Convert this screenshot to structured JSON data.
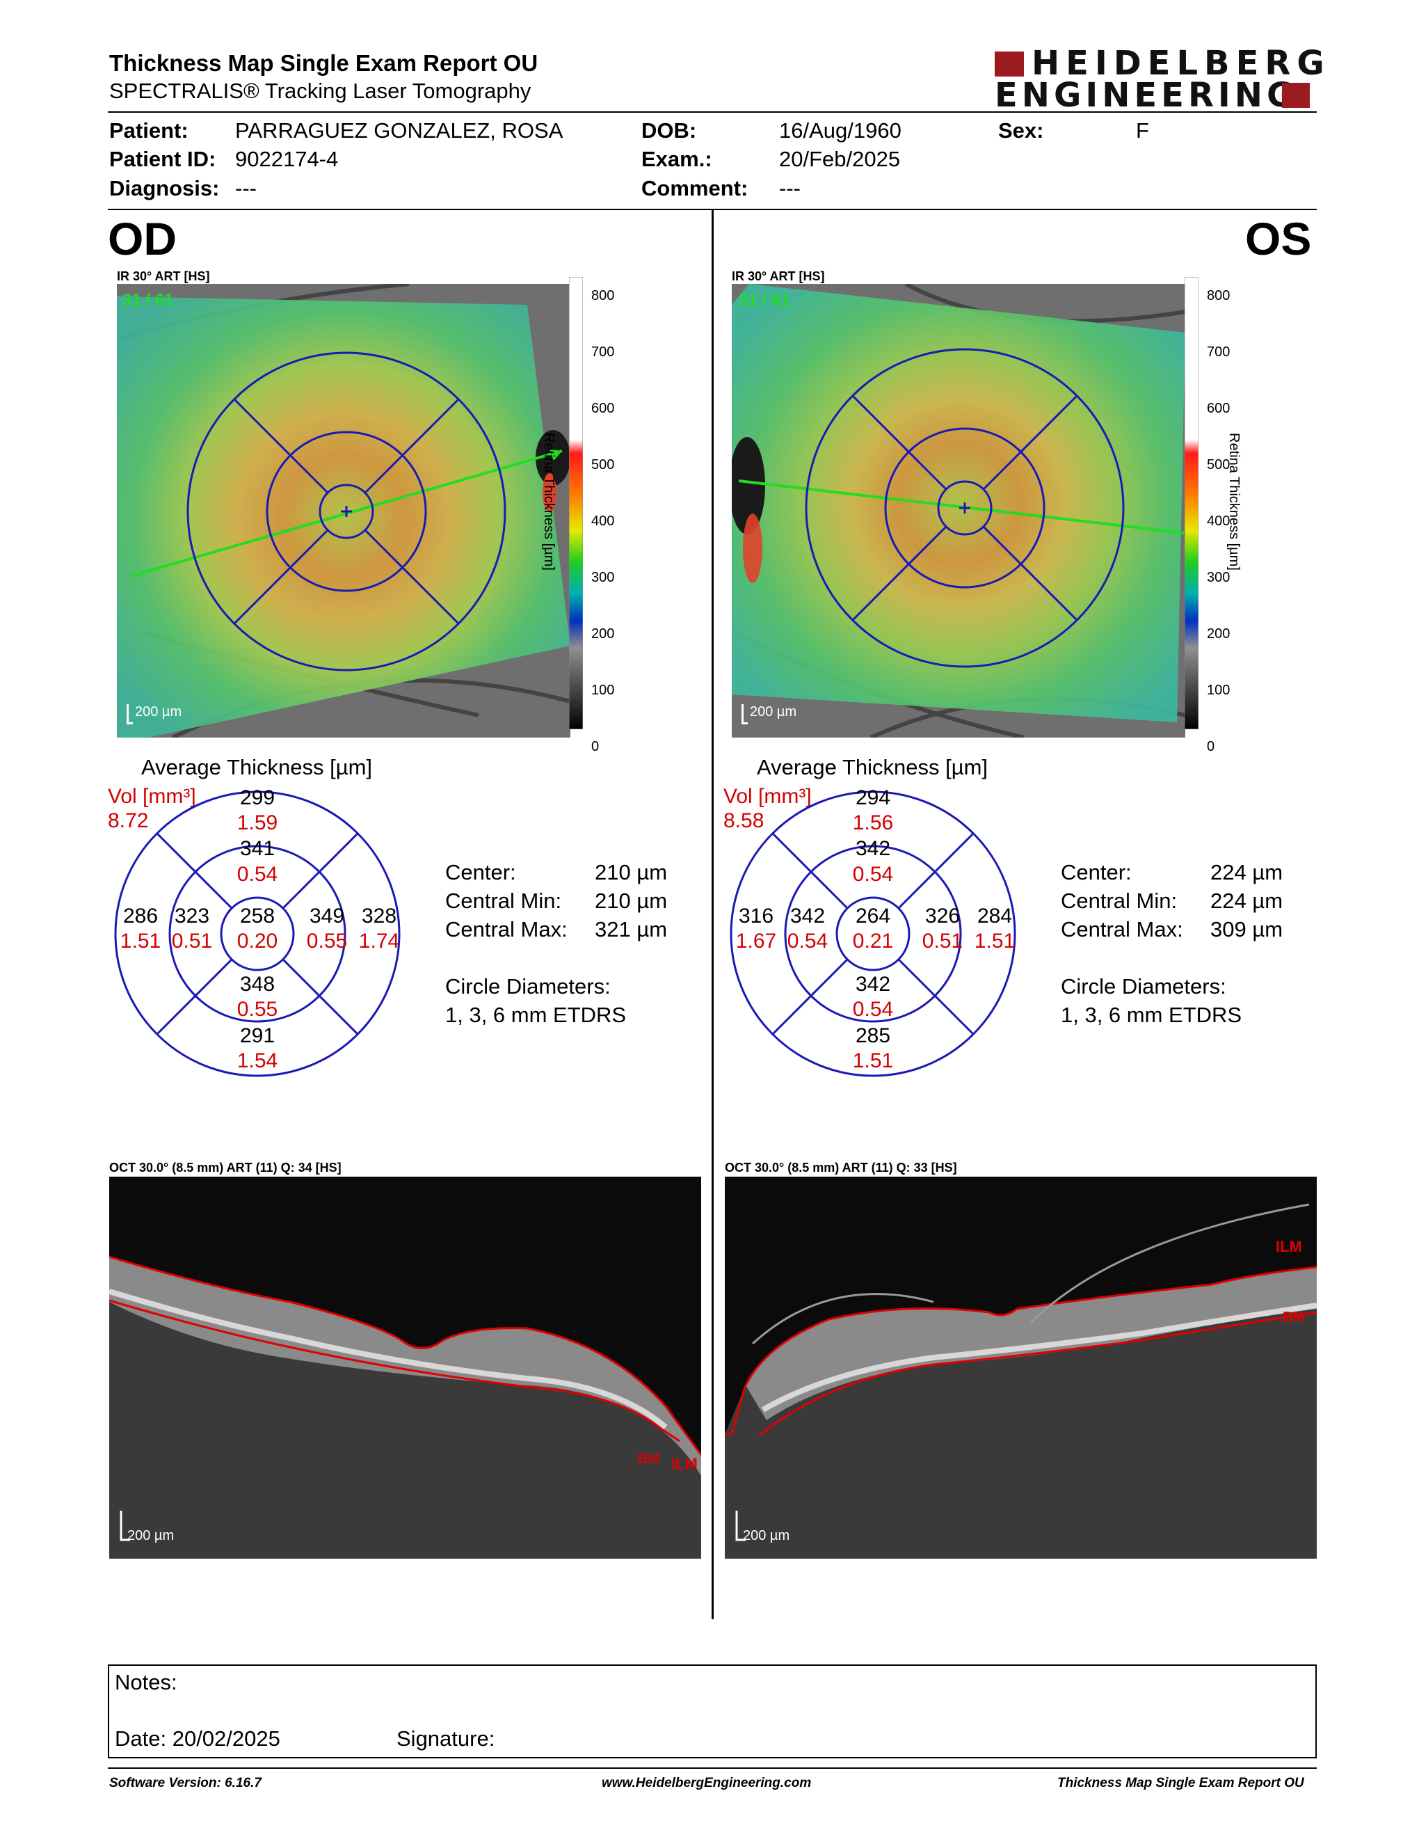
{
  "report": {
    "title": "Thickness Map Single Exam Report OU",
    "subtitle": "SPECTRALIS® Tracking Laser Tomography",
    "logo_line1": "HEIDELBERG",
    "logo_line2": "ENGINEERING",
    "brand_color": "#9b1b1f"
  },
  "patient": {
    "patient_label": "Patient:",
    "patient_value": "PARRAGUEZ GONZALEZ, ROSA",
    "id_label": "Patient ID:",
    "id_value": "9022174-4",
    "diag_label": "Diagnosis:",
    "diag_value": "---",
    "dob_label": "DOB:",
    "dob_value": "16/Aug/1960",
    "exam_label": "Exam.:",
    "exam_value": "20/Feb/2025",
    "comment_label": "Comment:",
    "comment_value": "---",
    "sex_label": "Sex:",
    "sex_value": "F"
  },
  "colorbar": {
    "ticks": [
      "800",
      "700",
      "600",
      "500",
      "400",
      "300",
      "200",
      "100",
      "0"
    ],
    "title": "Retina Thickness [µm]"
  },
  "od": {
    "eye": "OD",
    "ir_label": "IR 30° ART [HS]",
    "scan_counter": "31 / 61",
    "scale": "200 µm",
    "avg_title": "Average Thickness [µm]",
    "vol_label": "Vol [mm³]",
    "vol_value": "8.72",
    "sectors": {
      "outer_sup": {
        "t": "299",
        "v": "1.59"
      },
      "inner_sup": {
        "t": "341",
        "v": "0.54"
      },
      "center": {
        "t": "258",
        "v": "0.20"
      },
      "outer_left": {
        "t": "286",
        "v": "1.51"
      },
      "inner_left": {
        "t": "323",
        "v": "0.51"
      },
      "inner_right": {
        "t": "349",
        "v": "0.55"
      },
      "outer_right": {
        "t": "328",
        "v": "1.74"
      },
      "inner_inf": {
        "t": "348",
        "v": "0.55"
      },
      "outer_inf": {
        "t": "291",
        "v": "1.54"
      }
    },
    "stats": {
      "center_label": "Center:",
      "center_value": "210 µm",
      "cmin_label": "Central Min:",
      "cmin_value": "210 µm",
      "cmax_label": "Central Max:",
      "cmax_value": "321 µm",
      "diam_label": "Circle Diameters:",
      "diam_value": "1, 3, 6 mm ETDRS"
    },
    "oct_label": "OCT 30.0° (8.5 mm) ART (11) Q: 34 [HS]",
    "oct_scale": "200 µm",
    "ilm": "ILM",
    "bm": "BM"
  },
  "os": {
    "eye": "OS",
    "ir_label": "IR 30° ART [HS]",
    "scan_counter": "31 / 61",
    "scale": "200 µm",
    "avg_title": "Average Thickness [µm]",
    "vol_label": "Vol [mm³]",
    "vol_value": "8.58",
    "sectors": {
      "outer_sup": {
        "t": "294",
        "v": "1.56"
      },
      "inner_sup": {
        "t": "342",
        "v": "0.54"
      },
      "center": {
        "t": "264",
        "v": "0.21"
      },
      "outer_left": {
        "t": "316",
        "v": "1.67"
      },
      "inner_left": {
        "t": "342",
        "v": "0.54"
      },
      "inner_right": {
        "t": "326",
        "v": "0.51"
      },
      "outer_right": {
        "t": "284",
        "v": "1.51"
      },
      "inner_inf": {
        "t": "342",
        "v": "0.54"
      },
      "outer_inf": {
        "t": "285",
        "v": "1.51"
      }
    },
    "stats": {
      "center_label": "Center:",
      "center_value": "224 µm",
      "cmin_label": "Central Min:",
      "cmin_value": "224 µm",
      "cmax_label": "Central Max:",
      "cmax_value": "309 µm",
      "diam_label": "Circle Diameters:",
      "diam_value": "1, 3, 6 mm ETDRS"
    },
    "oct_label": "OCT 30.0° (8.5 mm) ART (11) Q: 33 [HS]",
    "oct_scale": "200 µm",
    "ilm": "ILM",
    "bm": "BM"
  },
  "notes": {
    "notes_label": "Notes:",
    "date_label": "Date: 20/02/2025",
    "signature_label": "Signature:"
  },
  "footer": {
    "software": "Software Version: 6.16.7",
    "url": "www.HeidelbergEngineering.com",
    "report_name": "Thickness Map Single Exam Report OU"
  }
}
